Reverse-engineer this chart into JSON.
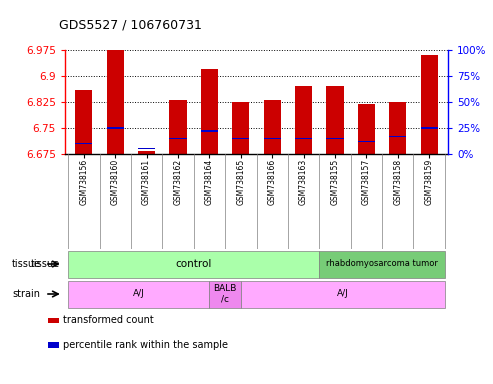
{
  "title": "GDS5527 / 106760731",
  "samples": [
    "GSM738156",
    "GSM738160",
    "GSM738161",
    "GSM738162",
    "GSM738164",
    "GSM738165",
    "GSM738166",
    "GSM738163",
    "GSM738155",
    "GSM738157",
    "GSM738158",
    "GSM738159"
  ],
  "transformed_count": [
    6.86,
    6.975,
    6.685,
    6.83,
    6.92,
    6.825,
    6.83,
    6.87,
    6.87,
    6.82,
    6.825,
    6.96
  ],
  "percentile_rank_pct": [
    10,
    25,
    5,
    15,
    22,
    15,
    15,
    15,
    15,
    12,
    17,
    25
  ],
  "ymin": 6.675,
  "ymax": 6.975,
  "yticks": [
    6.675,
    6.75,
    6.825,
    6.9,
    6.975
  ],
  "y2ticks": [
    0,
    25,
    50,
    75,
    100
  ],
  "y2labels": [
    "0%",
    "25%",
    "50%",
    "75%",
    "100%"
  ],
  "bar_color": "#cc0000",
  "blue_color": "#0000cc",
  "tissue_labels": [
    "control",
    "rhabdomyosarcoma tumor"
  ],
  "tissue_color": "#aaffaa",
  "tissue_color2": "#77cc77",
  "strain_labels": [
    "A/J",
    "BALB\n/c",
    "A/J"
  ],
  "strain_color": "#ffaaff",
  "strain_color2": "#ee88ee",
  "legend_items": [
    "transformed count",
    "percentile rank within the sample"
  ],
  "legend_colors": [
    "#cc0000",
    "#0000cc"
  ],
  "bg_color": "#ffffff"
}
